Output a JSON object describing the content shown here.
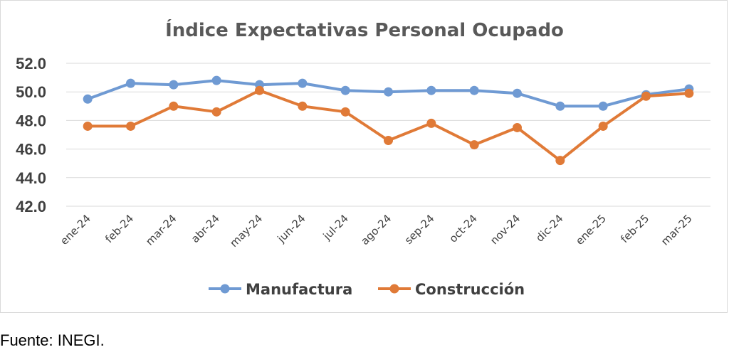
{
  "chart_data": {
    "type": "line",
    "title": "Índice Expectativas Personal Ocupado",
    "xlabel": "",
    "ylabel": "",
    "categories": [
      "ene-24",
      "feb-24",
      "mar-24",
      "abr-24",
      "may-24",
      "jun-24",
      "jul-24",
      "ago-24",
      "sep-24",
      "oct-24",
      "nov-24",
      "dic-24",
      "ene-25",
      "feb-25",
      "mar-25"
    ],
    "y_ticks": [
      "42.0",
      "44.0",
      "46.0",
      "48.0",
      "50.0",
      "52.0"
    ],
    "ylim": [
      42,
      52
    ],
    "grid": true,
    "legend_position": "bottom",
    "series": [
      {
        "name": "Manufactura",
        "color": "#6f9ad3",
        "values": [
          49.5,
          50.6,
          50.5,
          50.8,
          50.5,
          50.6,
          50.1,
          50.0,
          50.1,
          50.1,
          49.9,
          49.0,
          49.0,
          49.8,
          50.2
        ]
      },
      {
        "name": "Construcción",
        "color": "#e07a37",
        "values": [
          47.6,
          47.6,
          49.0,
          48.6,
          50.1,
          49.0,
          48.6,
          46.6,
          47.8,
          46.3,
          47.5,
          45.2,
          47.6,
          49.7,
          49.9
        ]
      }
    ]
  },
  "source_note": "Fuente: INEGI."
}
